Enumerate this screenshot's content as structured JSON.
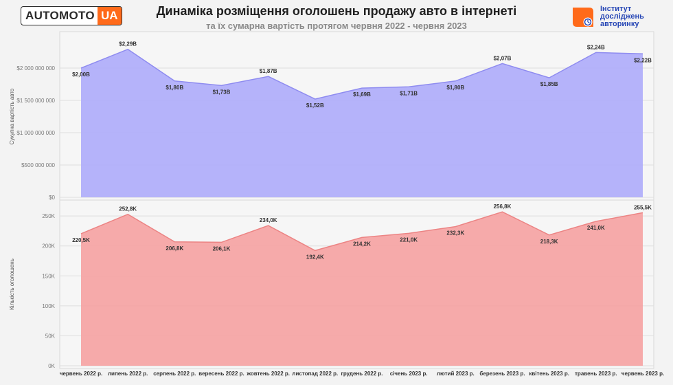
{
  "header": {
    "logo_left": {
      "word": "AUTOMOTO",
      "suffix": "UA"
    },
    "title": "Динаміка розміщення оголошень продажу авто в інтернеті",
    "subtitle": "та їх сумарна вартість протягом червня 2022 - червня 2023",
    "logo_right": {
      "line1": "Інститут",
      "line2": "досліджень",
      "line3": "авторинку"
    }
  },
  "colors": {
    "value_area": "#afadfa",
    "value_line": "#8f8cf0",
    "count_area": "#f5a3a3",
    "count_line": "#ec8484",
    "accent_orange": "#ff6a1a",
    "accent_blue": "#2646b5"
  },
  "chart_data": [
    {
      "type": "area",
      "categories": [
        "червень 2022 р.",
        "липень 2022 р.",
        "серпень 2022 р.",
        "вересень 2022 р.",
        "жовтень 2022 р.",
        "листопад 2022 р.",
        "грудень 2022 р.",
        "січень 2023 р.",
        "лютий 2023 р.",
        "березень 2023 р.",
        "квітень 2023 р.",
        "травень 2023 р.",
        "червень 2023 р."
      ],
      "values": [
        2000000000,
        2290000000,
        1800000000,
        1730000000,
        1870000000,
        1520000000,
        1690000000,
        1710000000,
        1800000000,
        2070000000,
        1850000000,
        2240000000,
        2220000000
      ],
      "data_labels": [
        "$2,00B",
        "$2,29B",
        "$1,80B",
        "$1,73B",
        "$1,87B",
        "$1,52B",
        "$1,69B",
        "$1,71B",
        "$1,80B",
        "$2,07B",
        "$1,85B",
        "$2,24B",
        "$2,22B"
      ],
      "ylabel": "Сукупна вартість авто",
      "ylim": [
        0,
        2500000000
      ],
      "yticks": [
        0,
        500000000,
        1000000000,
        1500000000,
        2000000000
      ],
      "ytick_labels": [
        "$0",
        "$500 000 000",
        "$1 000 000 000",
        "$1 500 000 000",
        "$2 000 000 000"
      ],
      "grid": true
    },
    {
      "type": "area",
      "categories": [
        "червень 2022 р.",
        "липень 2022 р.",
        "серпень 2022 р.",
        "вересень 2022 р.",
        "жовтень 2022 р.",
        "листопад 2022 р.",
        "грудень 2022 р.",
        "січень 2023 р.",
        "лютий 2023 р.",
        "березень 2023 р.",
        "квітень 2023 р.",
        "травень 2023 р.",
        "червень 2023 р."
      ],
      "values": [
        220500,
        252800,
        206800,
        206100,
        234000,
        192400,
        214200,
        221000,
        232300,
        256800,
        218300,
        241000,
        255500
      ],
      "data_labels": [
        "220,5K",
        "252,8K",
        "206,8K",
        "206,1K",
        "234,0K",
        "192,4K",
        "214,2K",
        "221,0K",
        "232,3K",
        "256,8K",
        "218,3K",
        "241,0K",
        "255,5K"
      ],
      "ylabel": "Кількість оголошень",
      "ylim": [
        0,
        272000
      ],
      "yticks": [
        0,
        50000,
        100000,
        150000,
        200000,
        250000
      ],
      "ytick_labels": [
        "0K",
        "50K",
        "100K",
        "150K",
        "200K",
        "250K"
      ],
      "grid": true
    }
  ]
}
